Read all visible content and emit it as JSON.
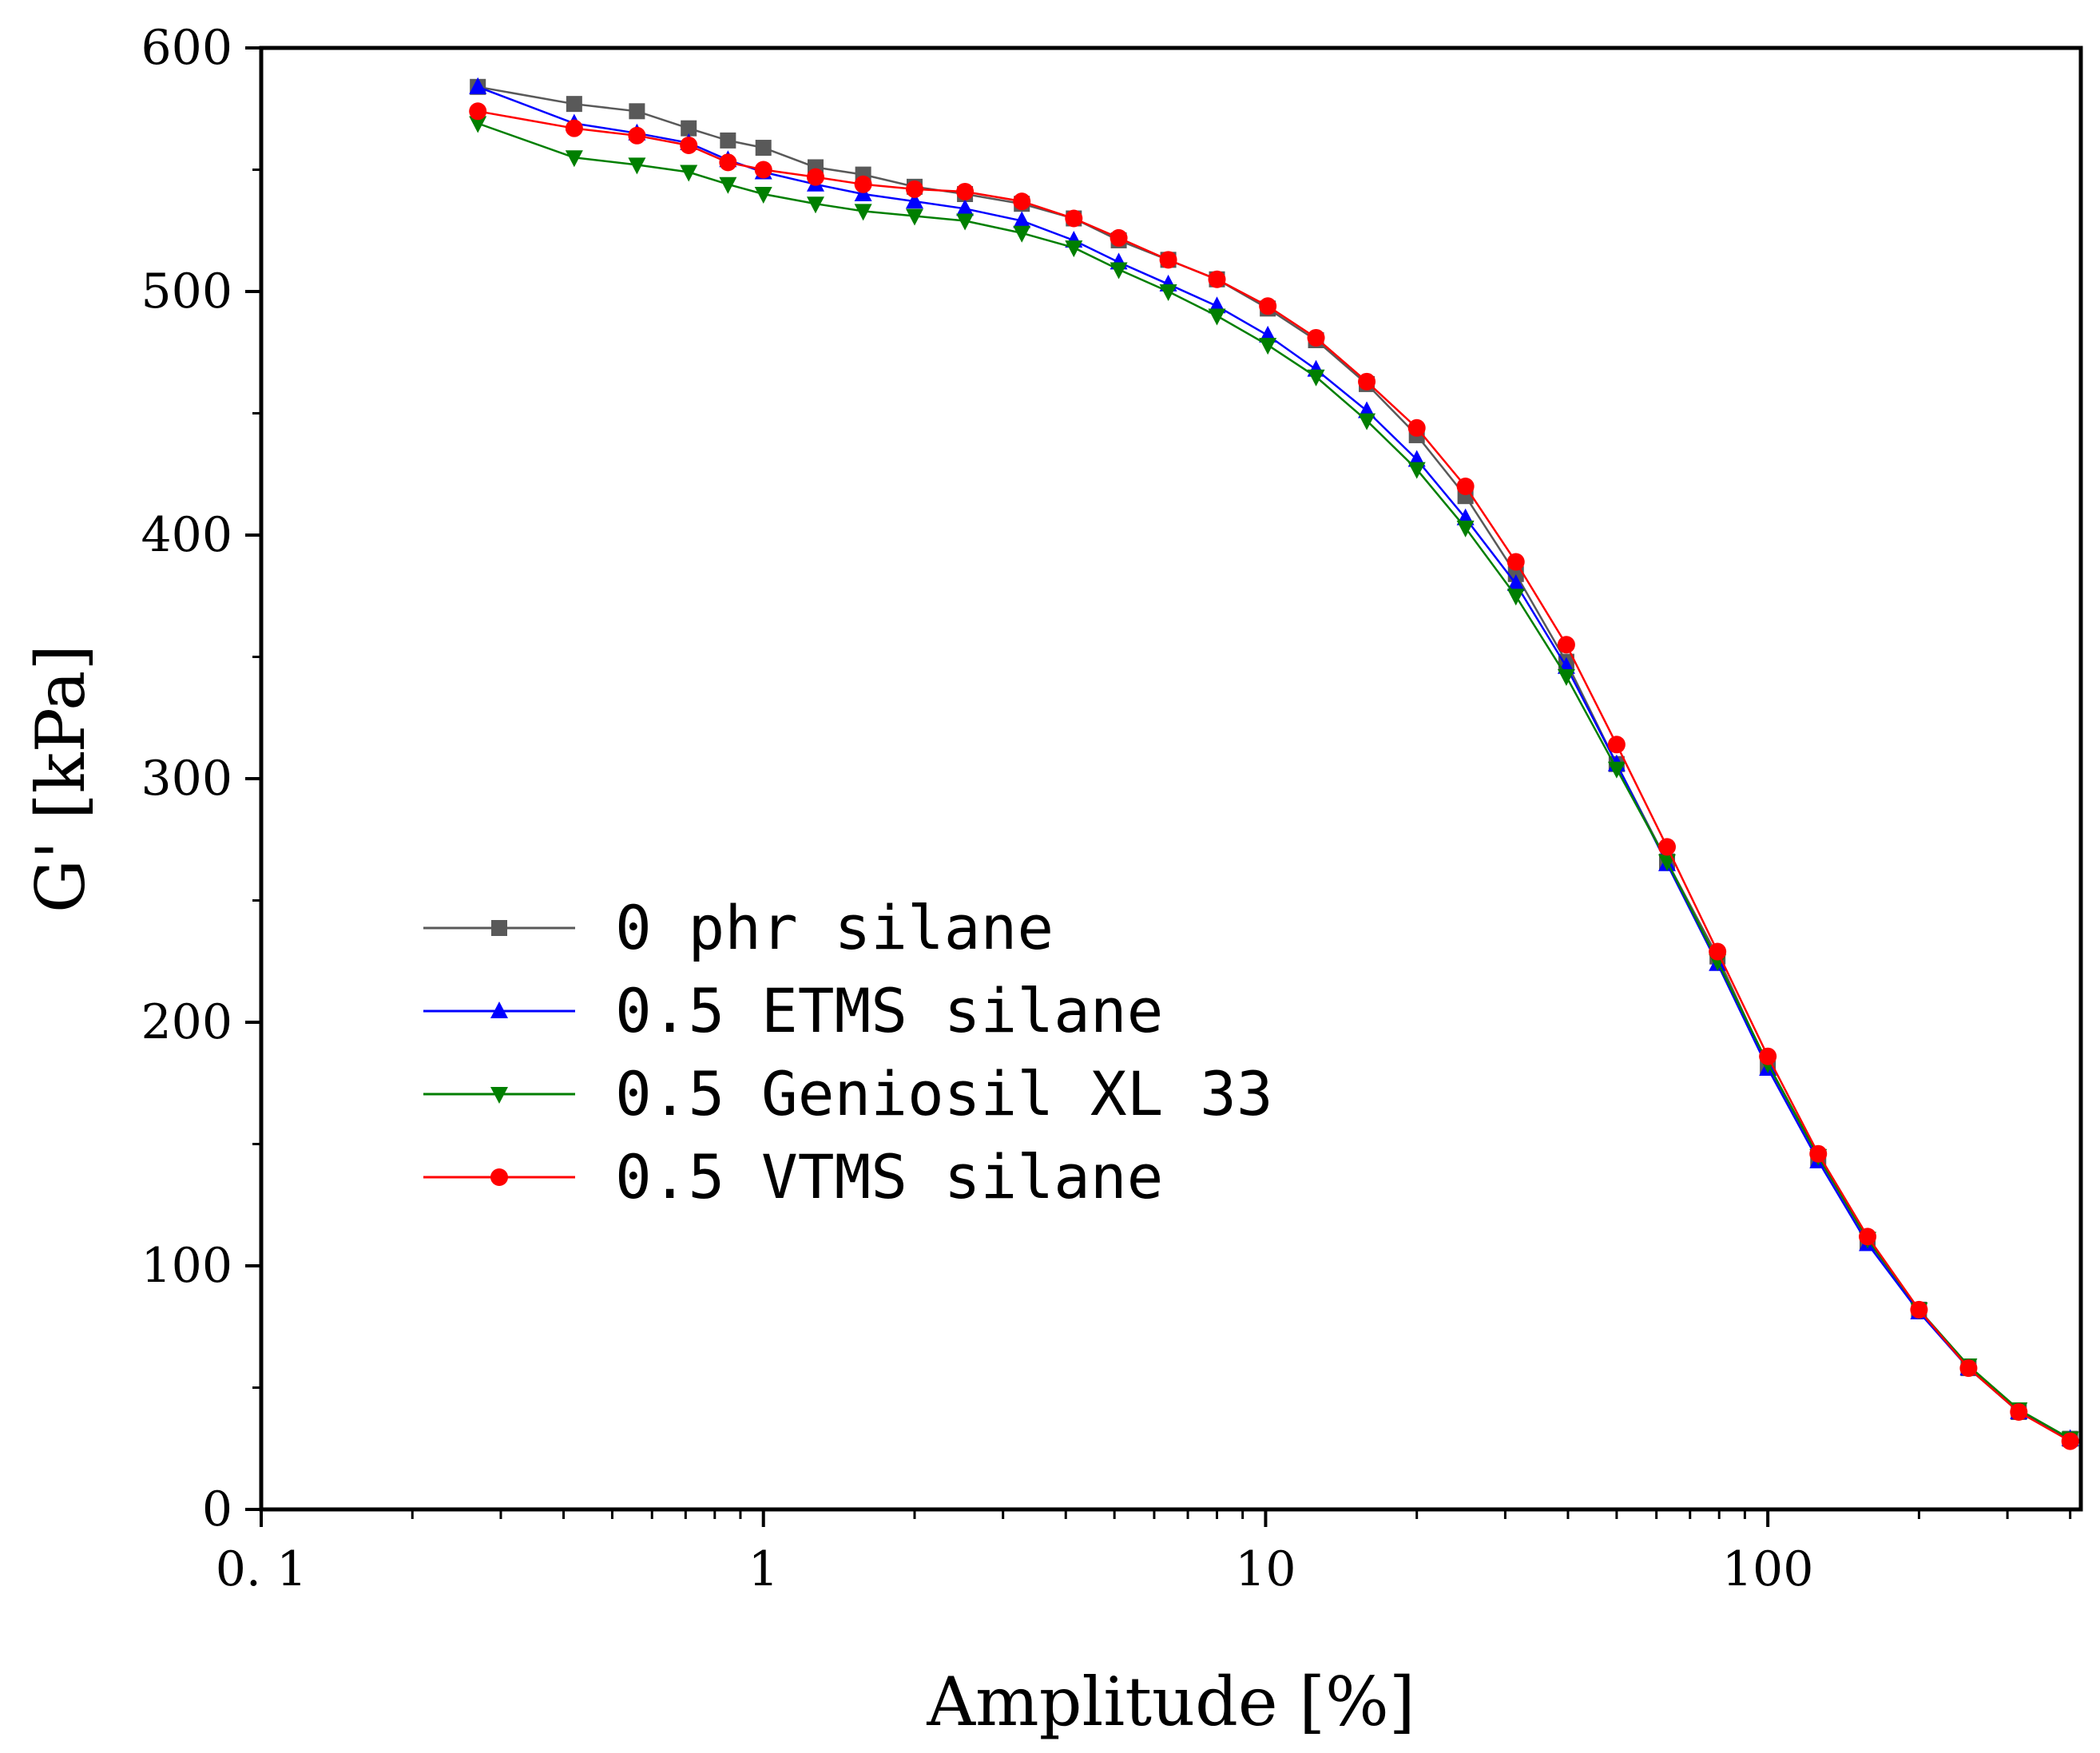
{
  "chart_data": {
    "type": "line",
    "title": "",
    "xlabel": "Amplitude [%]",
    "ylabel": "G' [kPa]",
    "x_scale": "log",
    "xlim": [
      0.1,
      420
    ],
    "ylim": [
      0,
      600
    ],
    "x_ticks": [
      0.1,
      1,
      10,
      100
    ],
    "x_tick_labels": [
      "0. 1",
      "1",
      "10",
      "100"
    ],
    "y_ticks": [
      0,
      100,
      200,
      300,
      400,
      500,
      600
    ],
    "y_tick_labels": [
      "0",
      "100",
      "200",
      "300",
      "400",
      "500",
      "600"
    ],
    "grid": false,
    "legend_position": "center-left",
    "x": [
      0.27,
      0.42,
      0.56,
      0.71,
      0.85,
      1.0,
      1.27,
      1.58,
      2.0,
      2.52,
      3.27,
      4.15,
      5.1,
      6.4,
      8.0,
      10.1,
      12.6,
      15.9,
      20.0,
      25.0,
      31.5,
      39.7,
      50.0,
      63.0,
      79.4,
      100,
      126,
      158,
      200,
      251,
      316,
      400
    ],
    "series": [
      {
        "name": "0 phr silane",
        "color": "#595959",
        "marker": "square",
        "values": [
          584,
          577,
          574,
          567,
          562,
          559,
          551,
          548,
          543,
          540,
          536,
          530,
          521,
          513,
          505,
          493,
          480,
          462,
          441,
          416,
          384,
          348,
          306,
          266,
          227,
          182,
          144,
          110,
          82,
          58,
          40,
          29
        ]
      },
      {
        "name": "0.5 ETMS silane",
        "color": "#0000ff",
        "marker": "triangle-up",
        "values": [
          584,
          569,
          565,
          561,
          554,
          549,
          544,
          540,
          537,
          534,
          529,
          521,
          512,
          503,
          494,
          482,
          468,
          451,
          431,
          407,
          380,
          346,
          306,
          265,
          224,
          181,
          143,
          109,
          81,
          58,
          40,
          29
        ]
      },
      {
        "name": "0.5 Geniosil XL 33",
        "color": "#007f00",
        "marker": "triangle-down",
        "values": [
          569,
          555,
          552,
          549,
          544,
          540,
          536,
          533,
          531,
          529,
          524,
          518,
          509,
          500,
          490,
          478,
          465,
          447,
          427,
          403,
          375,
          342,
          304,
          266,
          225,
          183,
          145,
          111,
          82,
          59,
          41,
          29
        ]
      },
      {
        "name": "0.5 VTMS silane",
        "color": "#ff0000",
        "marker": "circle",
        "values": [
          574,
          567,
          564,
          560,
          553,
          550,
          547,
          544,
          542,
          541,
          537,
          530,
          522,
          513,
          505,
          494,
          481,
          463,
          444,
          420,
          389,
          355,
          314,
          272,
          229,
          186,
          146,
          112,
          82,
          58,
          40,
          28
        ]
      }
    ]
  }
}
